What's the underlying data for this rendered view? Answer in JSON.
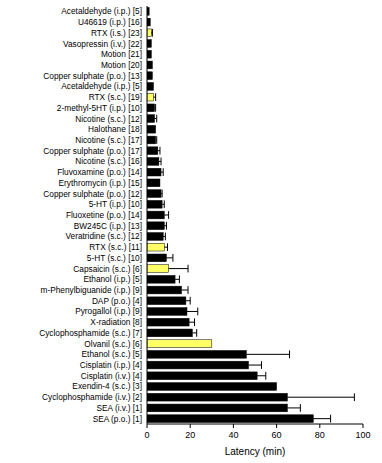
{
  "chart_data": {
    "type": "bar",
    "orientation": "horizontal",
    "x_label": "Latency (min)",
    "categories": [
      "Acetaldehyde (i.p.) [5]",
      "U46619 (i.p.) [16]",
      "RTX (i.s.) [23]",
      "Vasopressin (i.v.) [22]",
      "Motion [21]",
      "Motion [20]",
      "Copper sulphate (p.o.) [13]",
      "Acetaldehyde (i.p.) [5]",
      "RTX (s.c.) [19]",
      "2-methyl-5HT (i.p.) [10]",
      "Nicotine (s.c.) [12]",
      "Halothane [18]",
      "Nicotine (s.c.) [17]",
      "Copper sulphate (p.o.) [17]",
      "Nicotine (s.c.) [16]",
      "Fluvoxamine (p.o.) [14]",
      "Erythromycin (i.p.) [15]",
      "Copper sulphate (p.o.) [12]",
      "5-HT (i.p.) [10]",
      "Fluoxetine (p.o.) [14]",
      "BW245C (i.p.) [13]",
      "Veratridine (s.c.) [12]",
      "RTX (s.c.) [11]",
      "5-HT (s.c.) [10]",
      "Capsaicin (s.c.) [6]",
      "Ethanol (i.p.) [5]",
      "m-Phenylbiguanide (i.p.) [9]",
      "DAP (p.o.) [4]",
      "Pyrogallol (i.p.) [9]",
      "X-radiation [8]",
      "Cyclophosphamide (s.c.) [7]",
      "Olvanil (s.c.) [6]",
      "Ethanol (s.c.) [5]",
      "Cisplatin (i.p.) [4]",
      "Cisplatin (i.v.) [4]",
      "Exendin-4 (s.c.) [3]",
      "Cyclophosphamide (i.v.) [2]",
      "SEA (i.v.) [1]",
      "SEA (p.o.) [1]"
    ],
    "values": [
      1,
      1.5,
      2,
      2,
      2,
      2.5,
      2.5,
      3,
      3,
      3.5,
      3.5,
      4,
      4,
      5,
      5.5,
      6.5,
      6,
      6.5,
      7,
      8,
      8,
      7.5,
      8,
      9,
      10,
      13,
      16,
      18,
      18.5,
      19.5,
      21,
      30,
      46,
      47,
      51,
      60,
      65,
      65,
      77
    ],
    "errors": [
      null,
      null,
      0.5,
      null,
      null,
      null,
      null,
      null,
      1,
      0.5,
      1,
      null,
      0.5,
      1,
      1,
      1,
      null,
      0.5,
      1,
      2,
      1,
      1,
      1.5,
      3,
      9,
      2,
      3,
      2,
      5,
      2.5,
      2,
      null,
      20,
      6,
      4,
      null,
      31,
      6,
      8
    ],
    "colors": [
      "#000000",
      "#000000",
      "#ffff66",
      "#000000",
      "#000000",
      "#000000",
      "#000000",
      "#000000",
      "#ffff66",
      "#000000",
      "#000000",
      "#000000",
      "#000000",
      "#000000",
      "#000000",
      "#000000",
      "#000000",
      "#000000",
      "#000000",
      "#000000",
      "#000000",
      "#000000",
      "#ffff66",
      "#000000",
      "#ffff66",
      "#000000",
      "#000000",
      "#000000",
      "#000000",
      "#000000",
      "#000000",
      "#ffff66",
      "#000000",
      "#000000",
      "#000000",
      "#000000",
      "#000000",
      "#000000",
      "#000000"
    ],
    "xlim": [
      0,
      100
    ],
    "xticks": [
      0,
      20,
      40,
      60,
      80,
      100
    ]
  }
}
